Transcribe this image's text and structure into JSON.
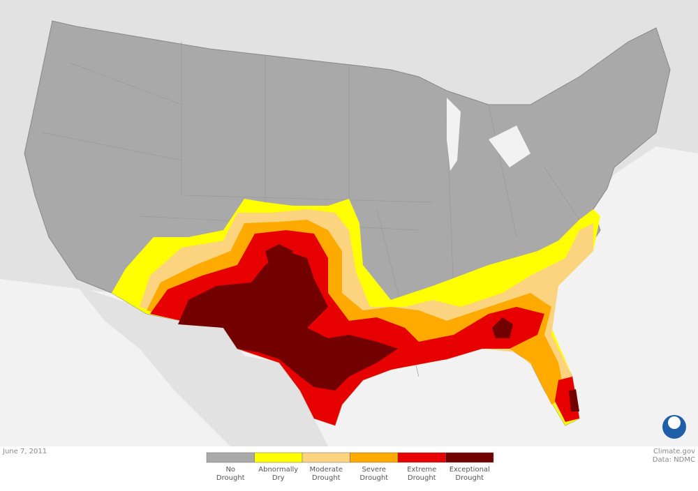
{
  "date": "June 7, 2011",
  "legend": [
    {
      "label": [
        "No",
        "Drought"
      ],
      "color": "#a9a9a9"
    },
    {
      "label": [
        "Abnormally",
        "Dry"
      ],
      "color": "#ffff00"
    },
    {
      "label": [
        "Moderate",
        "Drought"
      ],
      "color": "#fcd37f"
    },
    {
      "label": [
        "Severe",
        "Drought"
      ],
      "color": "#ffaa00"
    },
    {
      "label": [
        "Extreme",
        "Drought"
      ],
      "color": "#e60000"
    },
    {
      "label": [
        "Exceptional",
        "Drought"
      ],
      "color": "#730000"
    }
  ],
  "credit": {
    "source": "Climate.gov",
    "data": "Data: NDMC"
  }
}
